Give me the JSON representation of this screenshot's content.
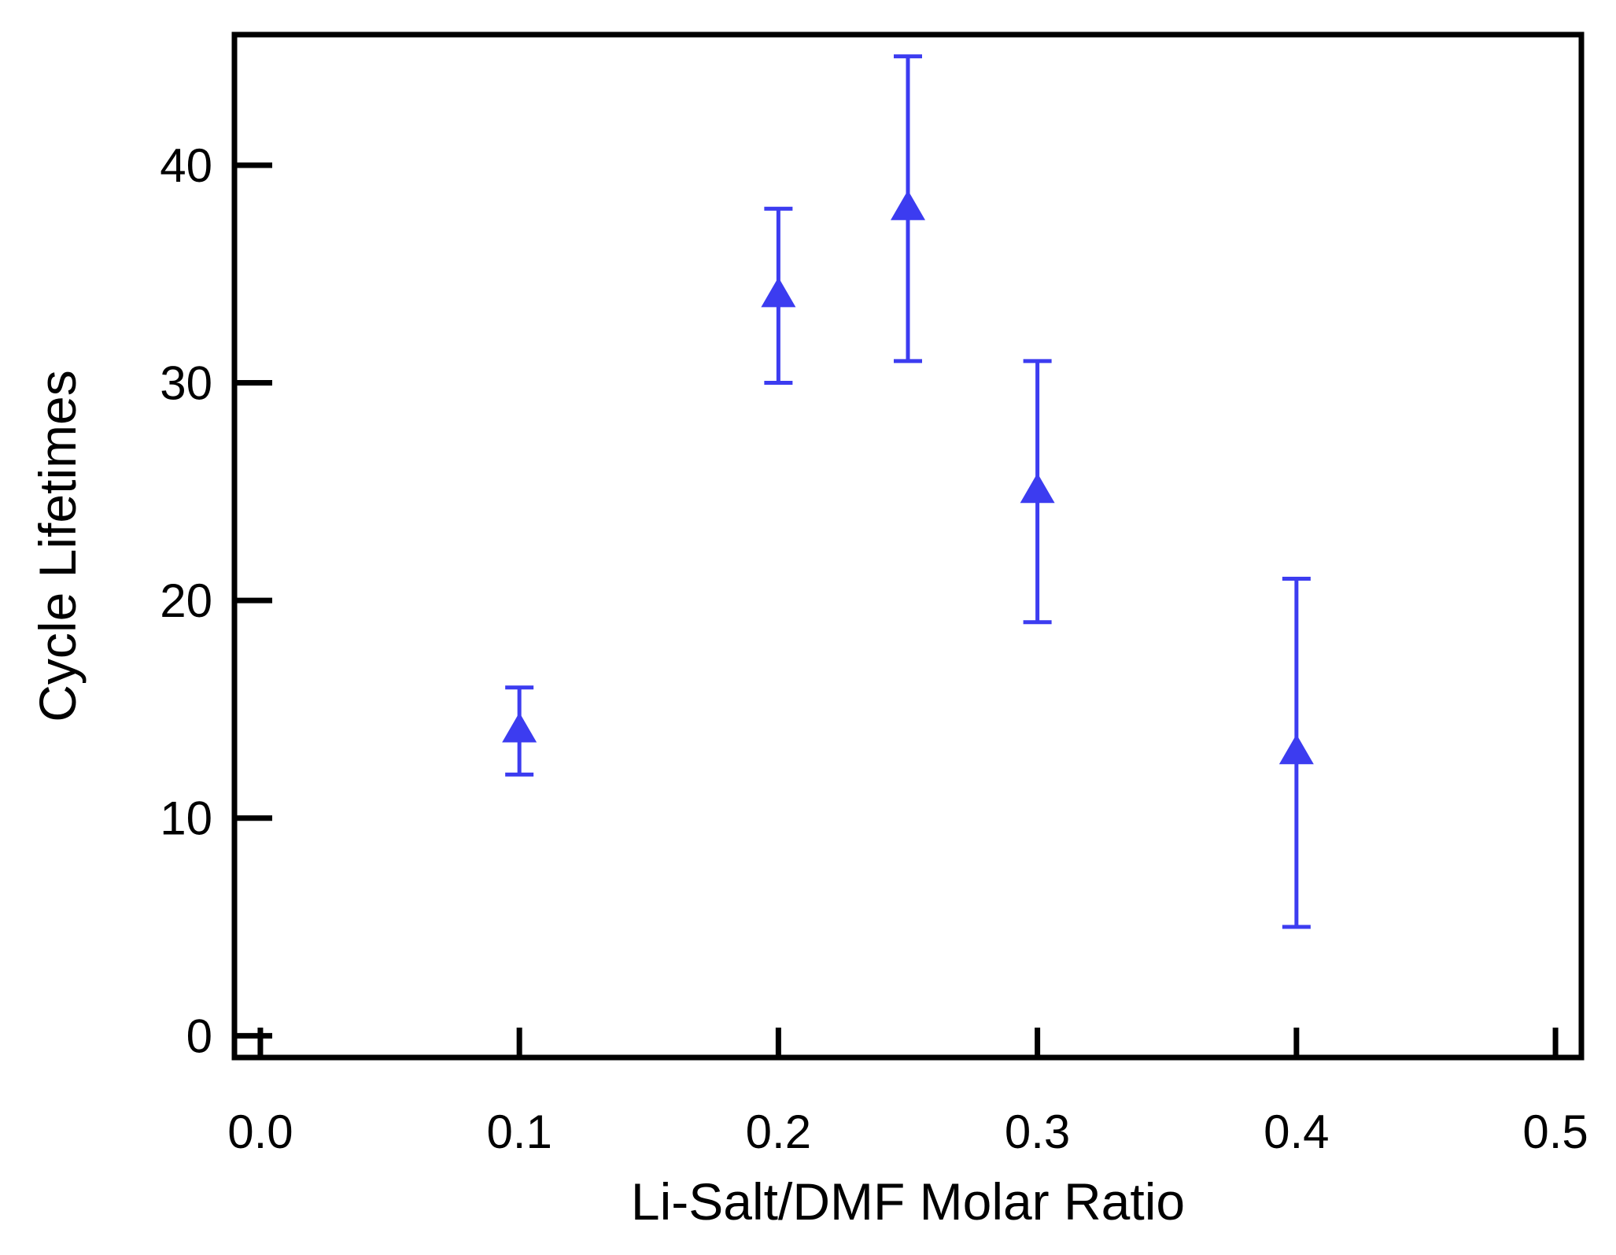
{
  "chart_data": {
    "type": "scatter",
    "title": "",
    "xlabel": "Li-Salt/DMF Molar Ratio",
    "ylabel": "Cycle Lifetimes",
    "xlim": [
      -0.01,
      0.51
    ],
    "ylim": [
      -1,
      46
    ],
    "xticks": [
      0.0,
      0.1,
      0.2,
      0.3,
      0.4,
      0.5
    ],
    "xtick_labels": [
      "0.0",
      "0.1",
      "0.2",
      "0.3",
      "0.4",
      "0.5"
    ],
    "yticks": [
      0,
      10,
      20,
      30,
      40
    ],
    "ytick_labels": [
      "0",
      "10",
      "20",
      "30",
      "40"
    ],
    "grid": false,
    "legend": "none",
    "marker": "triangle-up",
    "color": "#3c3cf0",
    "series": [
      {
        "x": [
          0.1,
          0.2,
          0.25,
          0.3,
          0.4
        ],
        "y": [
          14,
          34,
          38,
          25,
          13
        ],
        "error_low": [
          12,
          30,
          31,
          19,
          5
        ],
        "error_high": [
          16,
          38,
          45,
          31,
          21
        ]
      }
    ]
  }
}
